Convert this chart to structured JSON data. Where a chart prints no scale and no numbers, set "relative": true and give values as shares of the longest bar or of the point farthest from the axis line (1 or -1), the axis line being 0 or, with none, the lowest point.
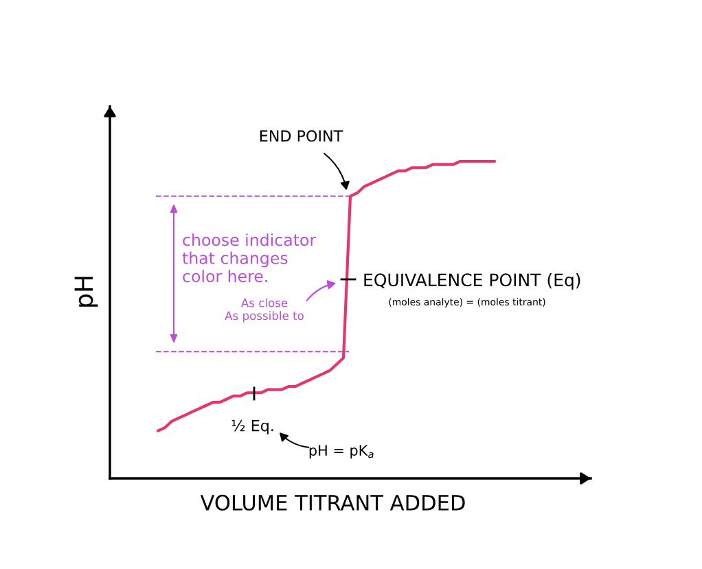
{
  "chart_data": {
    "type": "line",
    "relative": true,
    "xlabel": "VOLUME TITRANT ADDED",
    "ylabel": "pH",
    "categories": [
      null,
      null,
      null,
      null,
      null,
      null,
      null,
      null,
      null,
      null,
      null,
      null,
      null,
      null,
      null,
      null,
      null,
      null,
      null,
      null,
      null,
      null,
      null,
      null,
      null,
      null,
      null,
      null,
      null,
      null,
      null,
      null,
      null,
      null,
      null,
      null,
      null,
      null,
      null,
      null,
      null,
      null,
      null,
      null,
      null,
      null,
      null,
      null,
      null,
      null
    ],
    "series": [
      {
        "color": "#e8336b",
        "values": [
          0.15,
          0.16,
          0.18,
          0.19,
          0.2,
          0.21,
          0.22,
          0.23,
          0.24,
          0.24,
          0.25,
          0.26,
          0.26,
          0.27,
          0.27,
          0.27,
          0.28,
          0.28,
          0.28,
          0.29,
          0.29,
          0.3,
          0.31,
          0.32,
          0.33,
          0.34,
          0.36,
          0.38,
          0.89,
          0.9,
          0.92,
          0.93,
          0.94,
          0.95,
          0.96,
          0.97,
          0.97,
          0.98,
          0.98,
          0.98,
          0.99,
          0.99,
          0.99,
          0.99,
          1.0,
          1.0,
          1.0,
          1.0,
          1.0,
          1.0
        ]
      }
    ],
    "ref_lines": [
      {
        "axis": "y",
        "value": 0.4,
        "color": "#b84fd6",
        "line_style": "dashed"
      },
      {
        "axis": "y",
        "value": 0.89,
        "color": "#b84fd6",
        "line_style": "dashed"
      }
    ],
    "annotations": [
      "choose indicator\nthat changes\ncolor here.",
      "END POINT",
      "EQUIVALENCE POINT (Eq)",
      "(moles analyte) = (moles titrant)",
      "As close\nAs possible to",
      "½ Eq.",
      "pH = pK$_{a}$"
    ],
    "grid": false,
    "legend": false,
    "marker": "none",
    "line_style": "solid"
  }
}
